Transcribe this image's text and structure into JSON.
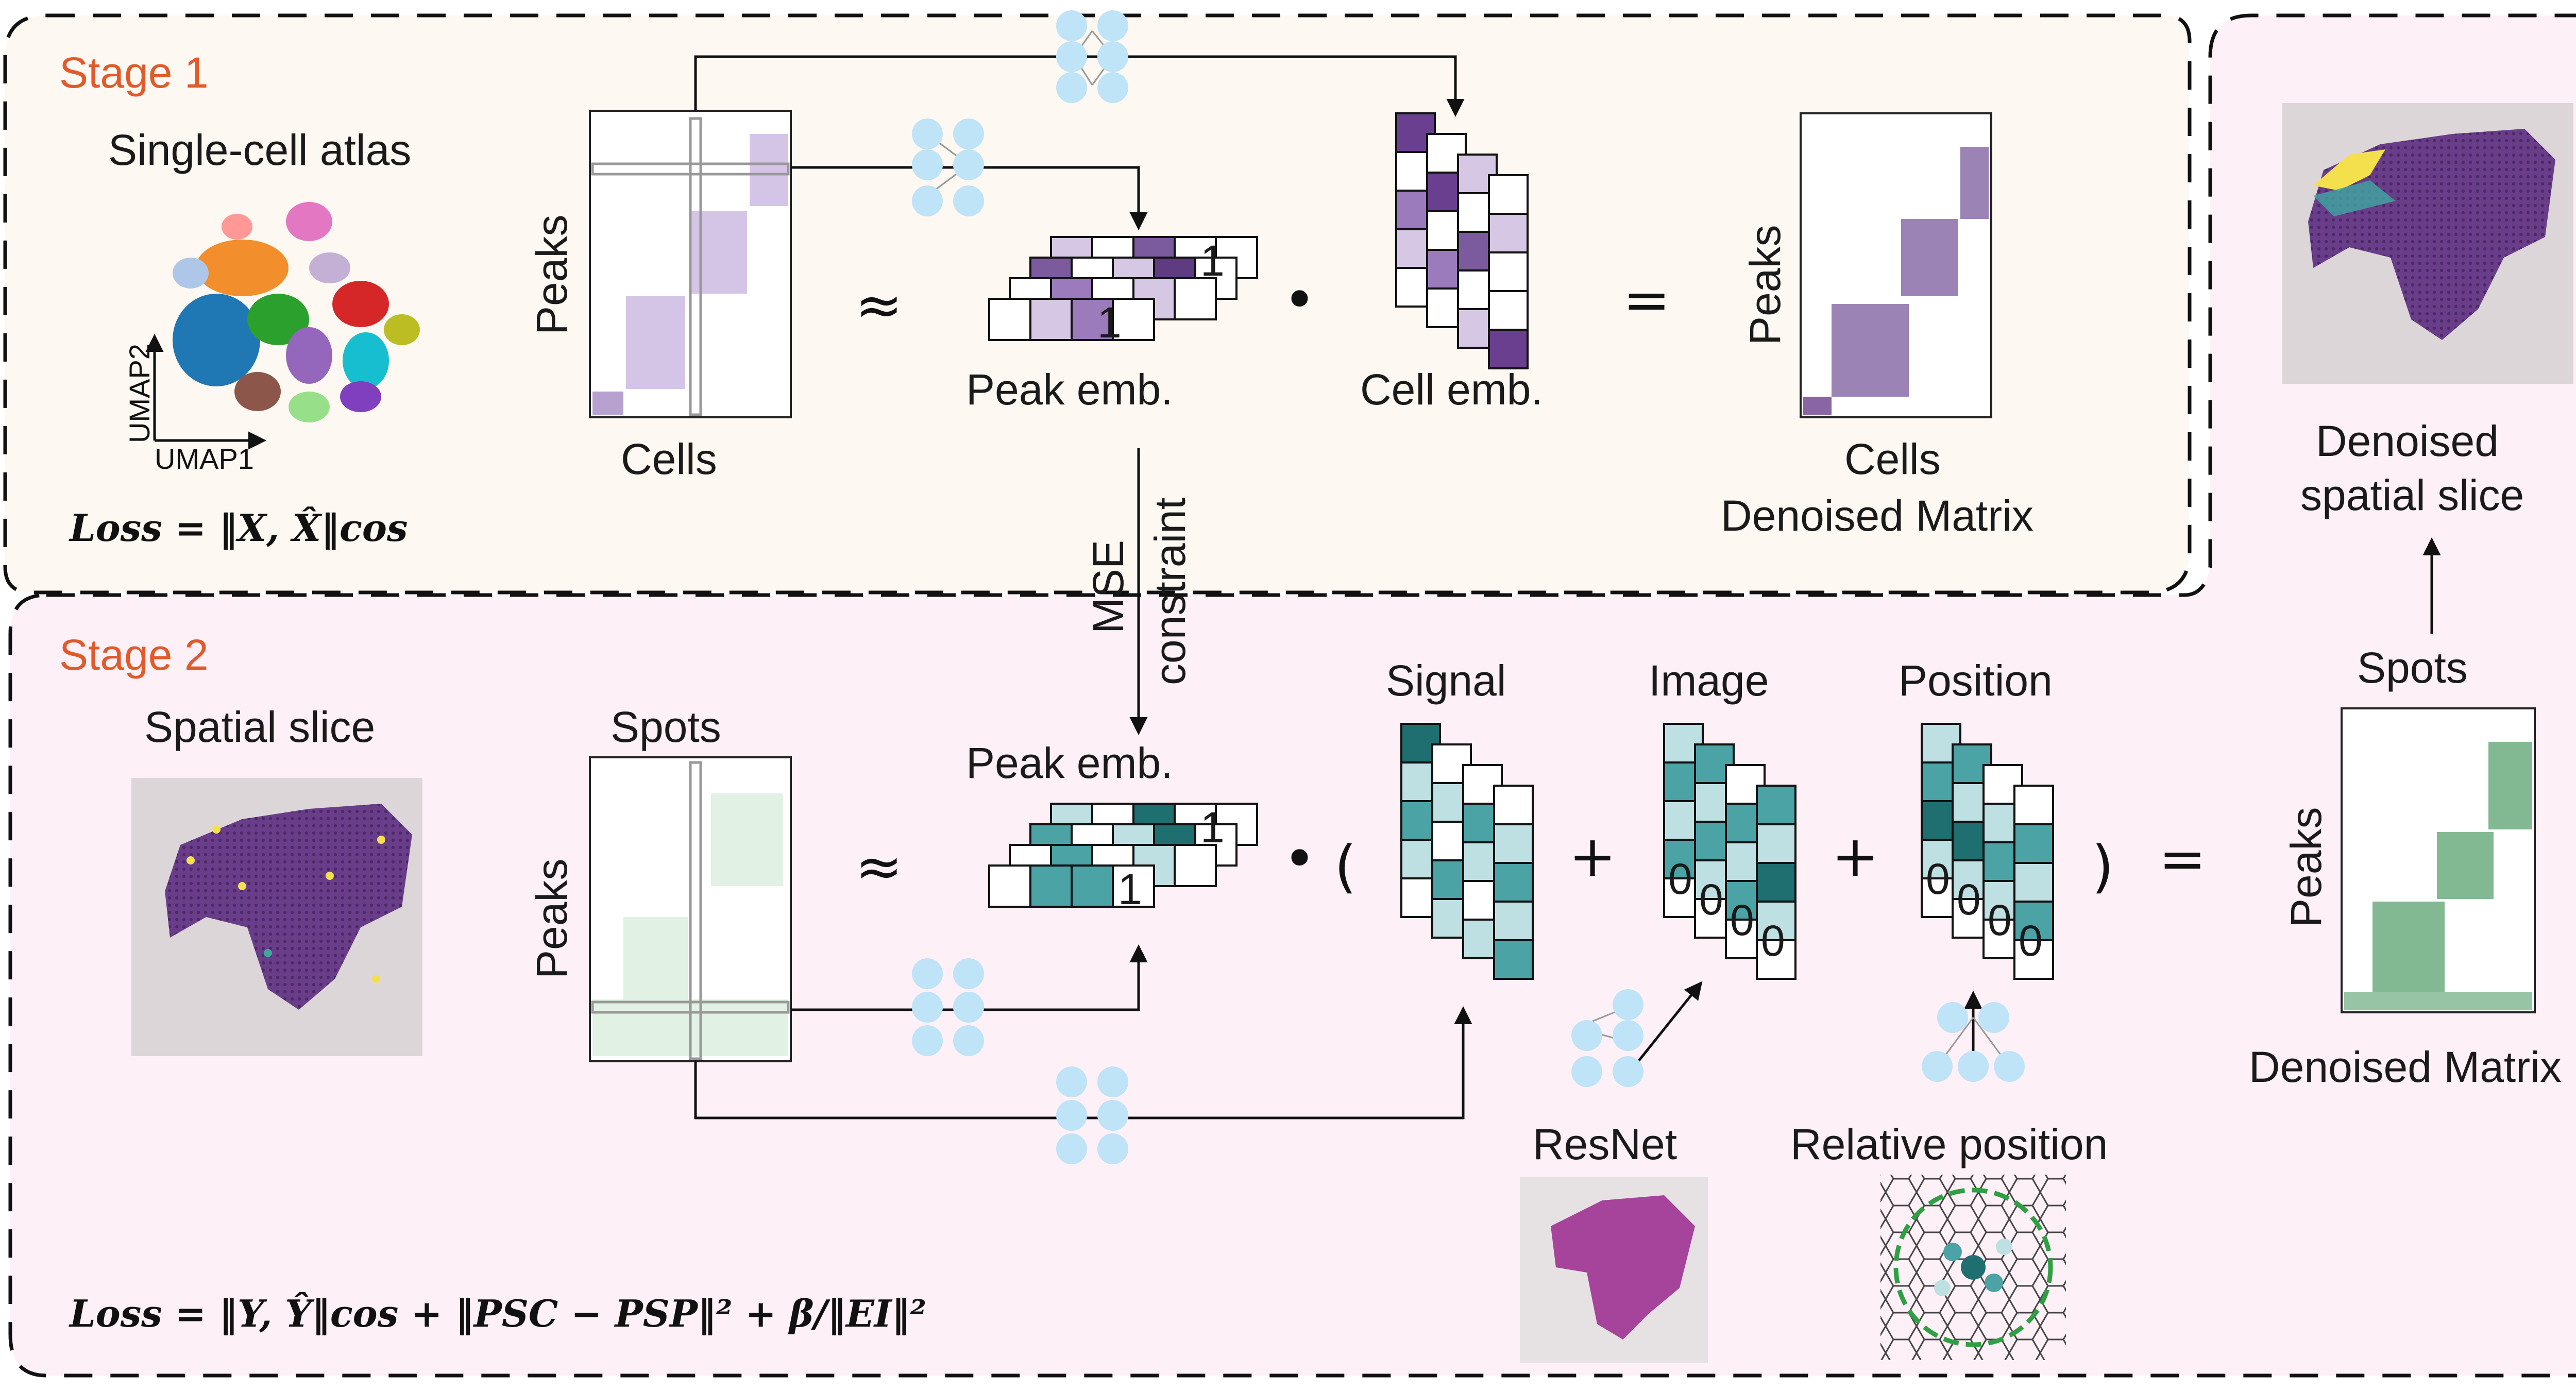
{
  "stage1": {
    "title": "Stage 1",
    "atlas_label": "Single-cell atlas",
    "umap_x": "UMAP1",
    "umap_y": "UMAP2",
    "loss": "Loss = ‖X, X̂‖cos",
    "peaks_label": "Peaks",
    "cells_label": "Cells",
    "approx": "≈",
    "dot": "•",
    "equals": "=",
    "peak_emb_label": "Peak emb.",
    "cell_emb_label": "Cell emb.",
    "ones": [
      "1",
      "1"
    ],
    "denoised_peaks": "Peaks",
    "denoised_cells": "Cells",
    "denoised_label": "Denoised Matrix"
  },
  "stage2": {
    "title": "Stage 2",
    "slice_label": "Spatial slice",
    "spots_label": "Spots",
    "peaks_label": "Peaks",
    "approx": "≈",
    "peak_emb_label": "Peak emb.",
    "ones": [
      "1",
      "1"
    ],
    "dot": "•",
    "open_paren": "(",
    "close_paren": ")",
    "plus": "+",
    "equals": "=",
    "signal_label": "Signal",
    "image_label": "Image",
    "position_label": "Position",
    "zeros": [
      "0",
      "0",
      "0",
      "0"
    ],
    "resnet_label": "ResNet",
    "relpos_label": "Relative position",
    "loss": "Loss = ‖Y, Ŷ‖cos + ‖PSC − PSP‖² + β/‖EI‖²",
    "denoised_peaks": "Peaks",
    "denoised_label": "Denoised Matrix"
  },
  "mse": {
    "line1": "MSE",
    "line2": "constraint"
  },
  "right": {
    "denoised_line1": "Denoised",
    "denoised_line2": "spatial slice",
    "spots_label": "Spots"
  },
  "colors": {
    "stage_text": "#e05a2b",
    "panel_bg": "#fdf4f8",
    "purple_dark": "#6b3f8f",
    "purple_mid": "#9b7bbb",
    "purple_light": "#d6c8e4",
    "teal_dark": "#1f6f70",
    "teal_mid": "#4ba3a6",
    "teal_light": "#bfe0e2",
    "green_matrix": "#2f8a4a",
    "nn_node": "#bfe3f7"
  }
}
